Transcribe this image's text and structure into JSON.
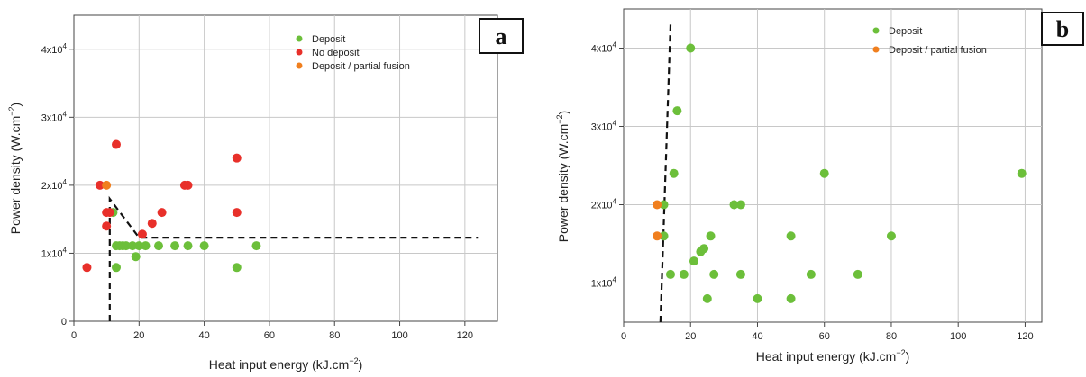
{
  "chart_data": [
    {
      "type": "scatter",
      "panel_label": "a",
      "xlabel": "Heat input energy (kJ.cm",
      "xlabel_sup": "−2",
      "xlabel_end": ")",
      "ylabel": "Power density (W.cm",
      "ylabel_sup": "−2",
      "ylabel_end": ")",
      "xlim": [
        0,
        130
      ],
      "ylim": [
        0,
        45000
      ],
      "x_ticks": [
        0,
        20,
        40,
        60,
        80,
        100,
        120
      ],
      "y_ticks": [
        {
          "value": 0,
          "base": "0",
          "exp": ""
        },
        {
          "value": 10000,
          "base": "1x10",
          "exp": "4"
        },
        {
          "value": 20000,
          "base": "2x10",
          "exp": "4"
        },
        {
          "value": 30000,
          "base": "3x10",
          "exp": "4"
        },
        {
          "value": 40000,
          "base": "4x10",
          "exp": "4"
        }
      ],
      "grid": true,
      "legend_position": "top-right",
      "series": [
        {
          "name": "Deposit",
          "color": "#6cbf3a",
          "points": [
            [
              12,
              16000
            ],
            [
              13,
              11100
            ],
            [
              14,
              11100
            ],
            [
              15,
              11100
            ],
            [
              16,
              11100
            ],
            [
              18,
              11100
            ],
            [
              20,
              11100
            ],
            [
              22,
              11100
            ],
            [
              26,
              11100
            ],
            [
              31,
              11100
            ],
            [
              35,
              11100
            ],
            [
              40,
              11100
            ],
            [
              13,
              7900
            ],
            [
              19,
              9500
            ],
            [
              50,
              7900
            ],
            [
              56,
              11100
            ]
          ]
        },
        {
          "name": "No deposit",
          "color": "#e8302a",
          "points": [
            [
              4,
              7900
            ],
            [
              8,
              20000
            ],
            [
              10,
              16000
            ],
            [
              10,
              14000
            ],
            [
              11,
              16000
            ],
            [
              13,
              26000
            ],
            [
              21,
              12800
            ],
            [
              24,
              14400
            ],
            [
              27,
              16000
            ],
            [
              34,
              20000
            ],
            [
              35,
              20000
            ],
            [
              50,
              24000
            ],
            [
              50,
              16000
            ]
          ]
        },
        {
          "name": "Deposit / partial fusion",
          "color": "#f07f1e",
          "points": [
            [
              10,
              20000
            ]
          ]
        }
      ],
      "boundary_line": [
        [
          11,
          0
        ],
        [
          11,
          18000
        ],
        [
          20,
          12300
        ],
        [
          124,
          12300
        ]
      ]
    },
    {
      "type": "scatter",
      "panel_label": "b",
      "xlabel": "Heat input energy (kJ.cm",
      "xlabel_sup": "−2",
      "xlabel_end": ")",
      "ylabel": "Power density (W.cm",
      "ylabel_sup": "−2",
      "ylabel_end": ")",
      "xlim": [
        0,
        125
      ],
      "ylim": [
        5000,
        45000
      ],
      "x_ticks": [
        0,
        20,
        40,
        60,
        80,
        100,
        120
      ],
      "y_ticks": [
        {
          "value": 10000,
          "base": "1x10",
          "exp": "4"
        },
        {
          "value": 20000,
          "base": "2x10",
          "exp": "4"
        },
        {
          "value": 30000,
          "base": "3x10",
          "exp": "4"
        },
        {
          "value": 40000,
          "base": "4x10",
          "exp": "4"
        }
      ],
      "grid": true,
      "legend_position": "top-right",
      "series": [
        {
          "name": "Deposit",
          "color": "#6cbf3a",
          "points": [
            [
              20,
              40000
            ],
            [
              16,
              32000
            ],
            [
              15,
              24000
            ],
            [
              12,
              20000
            ],
            [
              12,
              16000
            ],
            [
              14,
              11100
            ],
            [
              18,
              11100
            ],
            [
              21,
              12800
            ],
            [
              23,
              14000
            ],
            [
              24,
              14400
            ],
            [
              25,
              8000
            ],
            [
              26,
              16000
            ],
            [
              27,
              11100
            ],
            [
              33,
              20000
            ],
            [
              35,
              20000
            ],
            [
              35,
              11100
            ],
            [
              40,
              8000
            ],
            [
              50,
              16000
            ],
            [
              50,
              8000
            ],
            [
              56,
              11100
            ],
            [
              60,
              24000
            ],
            [
              70,
              11100
            ],
            [
              80,
              16000
            ],
            [
              119,
              24000
            ]
          ]
        },
        {
          "name": "Deposit / partial fusion",
          "color": "#f07f1e",
          "points": [
            [
              10,
              20000
            ],
            [
              10,
              16000
            ]
          ]
        }
      ],
      "boundary_line": [
        [
          11,
          5000
        ],
        [
          14,
          43000
        ]
      ]
    }
  ]
}
